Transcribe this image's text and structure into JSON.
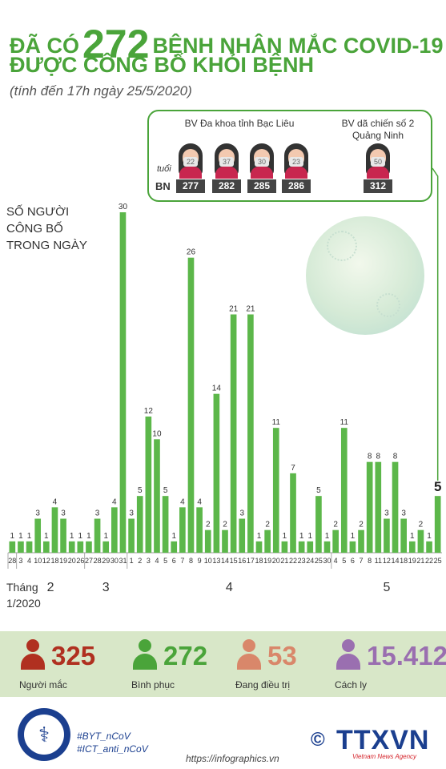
{
  "header": {
    "title_prefix": "ĐÃ CÓ",
    "title_number": "272",
    "title_rest": "BỆNH NHÂN MẮC COVID-19",
    "title_line2": "ĐƯỢC CÔNG BỐ KHỎI BỆNH",
    "subtitle": "(tính đến 17h ngày 25/5/2020)"
  },
  "colors": {
    "accent": "#4aa43a",
    "bar": "#5cb74a"
  },
  "chart_data": {
    "type": "bar",
    "ylabel": "SỐ NGƯỜI CÔNG BỐ TRONG NGÀY",
    "xlabel": "Tháng",
    "categories": [
      "28",
      "3",
      "4",
      "10",
      "12",
      "18",
      "19",
      "20",
      "26",
      "27",
      "28",
      "29",
      "30",
      "31",
      "1",
      "2",
      "3",
      "4",
      "5",
      "6",
      "7",
      "8",
      "9",
      "10",
      "13",
      "14",
      "15",
      "16",
      "17",
      "18",
      "19",
      "20",
      "21",
      "22",
      "23",
      "24",
      "25",
      "30",
      "4",
      "5",
      "6",
      "7",
      "8",
      "11",
      "12",
      "14",
      "18",
      "19",
      "21",
      "22",
      "25"
    ],
    "values": [
      1,
      1,
      1,
      3,
      1,
      4,
      3,
      1,
      1,
      1,
      3,
      1,
      4,
      30,
      3,
      5,
      12,
      10,
      5,
      1,
      4,
      26,
      4,
      2,
      14,
      2,
      21,
      3,
      21,
      1,
      2,
      11,
      1,
      7,
      1,
      1,
      5,
      1,
      2,
      11,
      1,
      2,
      8,
      8,
      3,
      8,
      3,
      1,
      2,
      1,
      5
    ],
    "months": [
      {
        "label": "Tháng 1/2020",
        "start": 0,
        "end": 0
      },
      {
        "label": "2",
        "start": 1,
        "end": 8
      },
      {
        "label": "3",
        "start": 9,
        "end": 13
      },
      {
        "label": "4",
        "start": 14,
        "end": 37
      },
      {
        "label": "5",
        "start": 38,
        "end": 50
      }
    ],
    "highlight_last": true
  },
  "axis": {
    "month_word": "Tháng",
    "first_month_label": "1/2020"
  },
  "callout": {
    "hospital1": "BV Đa khoa tỉnh Bạc Liêu",
    "hospital2": "BV dã chiến số 2 Quảng Ninh",
    "age_label": "tuổi",
    "bn_label": "BN",
    "patients": [
      {
        "age": "22",
        "id": "277"
      },
      {
        "age": "37",
        "id": "282"
      },
      {
        "age": "30",
        "id": "285"
      },
      {
        "age": "23",
        "id": "286"
      },
      {
        "age": "50",
        "id": "312"
      }
    ]
  },
  "stats": [
    {
      "value": "325",
      "label": "Người mắc",
      "color": "#b03020"
    },
    {
      "value": "272",
      "label": "Bình phục",
      "color": "#4aa43a"
    },
    {
      "value": "53",
      "label": "Đang điều trị",
      "color": "#d9876a"
    },
    {
      "value": "15.412",
      "label": "Cách ly",
      "color": "#9a6fb0"
    }
  ],
  "footer": {
    "hashtag1": "#BYT_nCoV",
    "hashtag2": "#ICT_anti_nCoV",
    "url": "https://infographics.vn",
    "copyright": "©",
    "agency": "TTXVN",
    "agency_sub": "Vietnam News Agency"
  }
}
